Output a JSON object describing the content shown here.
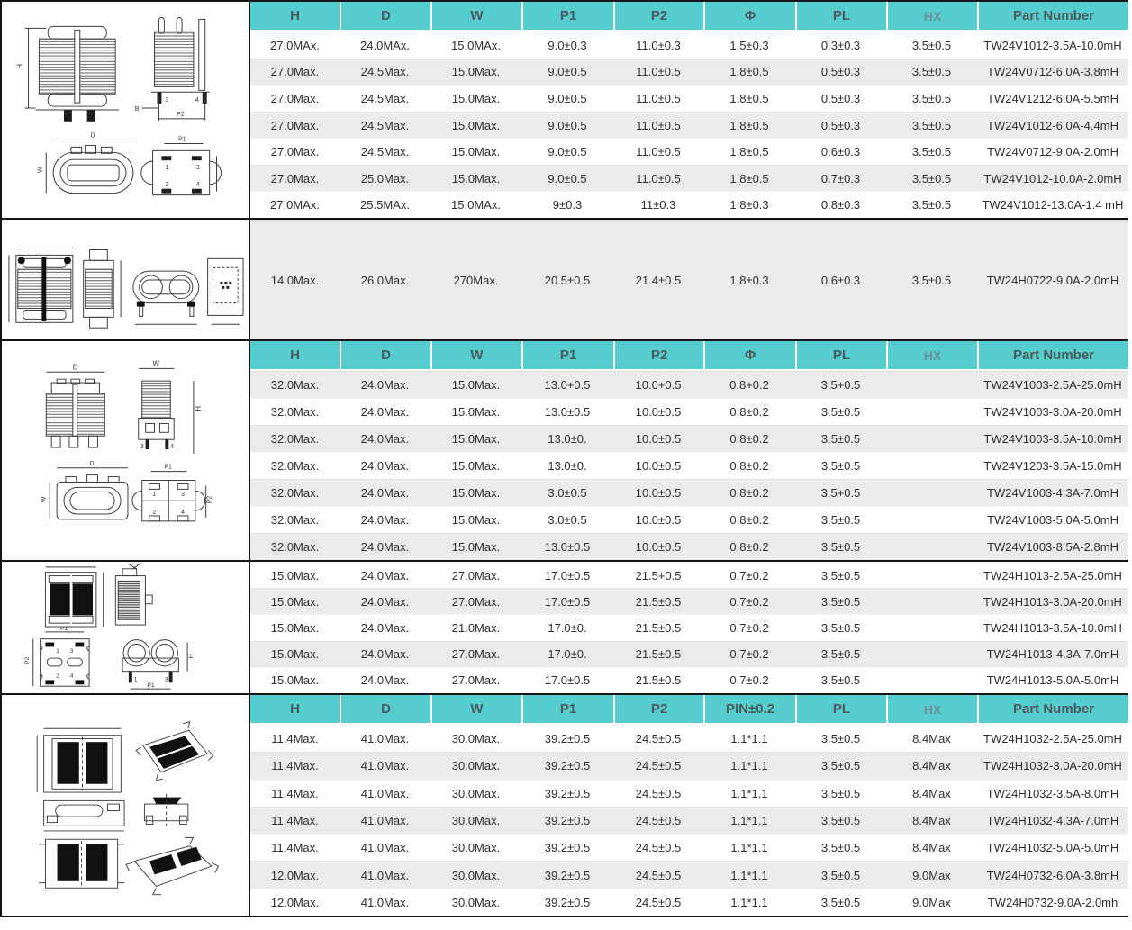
{
  "colors": {
    "header_bg": "#55cdce",
    "section_border": "#141414",
    "row_alt": "#ebebeb",
    "row_white": "#ffffff",
    "header_text": "#4b5a5d",
    "hx_header_text": "#6d9094",
    "cell_text": "#2e2e2e"
  },
  "table": {
    "sections": [
      {
        "header": [
          "H",
          "D",
          "W",
          "P1",
          "P2",
          "Φ",
          "PL",
          "HX",
          "Part Number"
        ],
        "stripe_start": "white",
        "rows": [
          [
            "27.0MAx.",
            "24.0MAx.",
            "15.0MAx.",
            "9.0±0.3",
            "11.0±0.3",
            "1.5±0.3",
            "0.3±0.3",
            "3.5±0.5",
            "TW24V1012-3.5A-10.0mH"
          ],
          [
            "27.0Max.",
            "24.5Max.",
            "15.0Max.",
            "9.0±0.5",
            "11.0±0.5",
            "1.8±0.5",
            "0.5±0.3",
            "3.5±0.5",
            "TW24V0712-6.0A-3.8mH"
          ],
          [
            "27.0Max.",
            "24.5Max.",
            "15.0Max.",
            "9.0±0.5",
            "11.0±0.5",
            "1.8±0.5",
            "0.5±0.3",
            "3.5±0.5",
            "TW24V1212-6.0A-5.5mH"
          ],
          [
            "27.0Max.",
            "24.5Max.",
            "15.0Max.",
            "9.0±0.5",
            "11.0±0.5",
            "1.8±0.5",
            "0.5±0.3",
            "3.5±0.5",
            "TW24V1012-6.0A-4.4mH"
          ],
          [
            "27.0Max.",
            "24.5Max.",
            "15.0Max.",
            "9.0±0.5",
            "11.0±0.5",
            "1.8±0.5",
            "0.6±0.3",
            "3.5±0.5",
            "TW24V0712-9.0A-2.0mH"
          ],
          [
            "27.0Max.",
            "25.0Max.",
            "15.0Max.",
            "9.0±0.5",
            "11.0±0.5",
            "1.8±0.5",
            "0.7±0.3",
            "3.5±0.5",
            "TW24V1012-10.0A-2.0mH"
          ],
          [
            "27.0MAx.",
            "25.5MAx.",
            "15.0MAx.",
            "9±0.3",
            "11±0.3",
            "1.8±0.3",
            "0.8±0.3",
            "3.5±0.5",
            "TW24V1012-13.0A-1.4 mH"
          ]
        ]
      },
      {
        "tall": true,
        "stripe_start": "alt",
        "rows": [
          [
            "14.0Max.",
            "26.0Max.",
            "270Max.",
            "20.5±0.5",
            "21.4±0.5",
            "1.8±0.3",
            "0.6±0.3",
            "3.5±0.5",
            "TW24H0722-9.0A-2.0mH"
          ]
        ]
      },
      {
        "header": [
          "H",
          "D",
          "W",
          "P1",
          "P2",
          "Φ",
          "PL",
          "HX",
          "Part Number"
        ],
        "stripe_start": "alt",
        "rows": [
          [
            "32.0Max.",
            "24.0Max.",
            "15.0Max.",
            "13.0+0.5",
            "10.0+0.5",
            "0.8+0.2",
            "3.5+0.5",
            "",
            "TW24V1003-2.5A-25.0mH"
          ],
          [
            "32.0Max.",
            "24.0Max.",
            "15.0Max.",
            "13.0±0.5",
            "10.0±0.5",
            "0.8±0.2",
            "3.5±0.5",
            "",
            "TW24V1003-3.0A-20.0mH"
          ],
          [
            "32.0Max.",
            "24.0Max.",
            "15.0Max.",
            "13.0±0.",
            "10.0±0.5",
            "0.8±0.2",
            "3.5±0.5",
            "",
            "TW24V1003-3.5A-10.0mH"
          ],
          [
            "32.0Max.",
            "24.0Max.",
            "15.0Max.",
            "13.0±0.",
            "10.0±0.5",
            "0.8±0.2",
            "3.5±0.5",
            "",
            "TW24V1203-3.5A-15.0mH"
          ],
          [
            "32.0Max.",
            "24.0Max.",
            "15.0Max.",
            "3.0±0.5",
            "10.0±0.5",
            "0.8±0.2",
            "3.5+0.5",
            "",
            "TW24V1003-4.3A-7.0mH"
          ],
          [
            "32.0Max.",
            "24.0Max.",
            "15.0Max.",
            "3.0±0.5",
            "10.0±0.5",
            "0.8±0.2",
            "3.5±0.5",
            "",
            "TW24V1003-5.0A-5.0mH"
          ],
          [
            "32.0Max.",
            "24.0Max.",
            "15.0Max.",
            "13.0±0.5",
            "10.0±0.5",
            "0.8±0.2",
            "3.5±0.5",
            "",
            "TW24V1003-8.5A-2.8mH"
          ]
        ]
      },
      {
        "stripe_start": "white",
        "rows": [
          [
            "15.0Max.",
            "24.0Max.",
            "27.0Max.",
            "17.0±0.5",
            "21.5+0.5",
            "0.7±0.2",
            "3.5±0.5",
            "",
            "TW24H1013-2.5A-25.0mH"
          ],
          [
            "15.0Max.",
            "24.0Max.",
            "27.0Max.",
            "17.0±0.5",
            "21.5±0.5",
            "0.7±0.2",
            "3.5±0.5",
            "",
            "TW24H1013-3.0A-20.0mH"
          ],
          [
            "15.0Max.",
            "24.0Max.",
            "21.0Max.",
            "17.0±0.",
            "21.5±0.5",
            "0.7±0.2",
            "3.5±0.5",
            "",
            "TW24H1013-3.5A-10.0mH"
          ],
          [
            "15.0Max.",
            "24.0Max.",
            "27.0Max.",
            "17.0±0.",
            "21.5±0.5",
            "0.7±0.2",
            "3.5±0.5",
            "",
            "TW24H1013-4.3A-7.0mH"
          ],
          [
            "15.0Max.",
            "24.0Max.",
            "27.0Max.",
            "17.0±0.5",
            "21.5±0.5",
            "0.7±0.2",
            "3.5±0.5",
            "",
            "TW24H1013-5.0A-5.0mH"
          ]
        ]
      },
      {
        "header": [
          "H",
          "D",
          "W",
          "P1",
          "P2",
          "PIN±0.2",
          "PL",
          "HX",
          "Part Number"
        ],
        "stripe_start": "white",
        "rows": [
          [
            "11.4Max.",
            "41.0Max.",
            "30.0Max.",
            "39.2±0.5",
            "24.5±0.5",
            "1.1*1.1",
            "3.5±0.5",
            "8.4Max",
            "TW24H1032-2.5A-25.0mH"
          ],
          [
            "11.4Max.",
            "41.0Max.",
            "30.0Max.",
            "39.2±0.5",
            "24.5±0.5",
            "1.1*1.1",
            "3.5±0.5",
            "8.4Max",
            "TW24H1032-3.0A-20.0mH"
          ],
          [
            "11.4Max.",
            "41.0Max.",
            "30.0Max.",
            "39.2±0.5",
            "24.5±0.5",
            "1.1*1.1",
            "3.5±0.5",
            "8.4Max",
            "TW24H1032-3.5A-8.0mH"
          ],
          [
            "11.4Max.",
            "41.0Max.",
            "30.0Max.",
            "39.2±0.5",
            "24.5±0.5",
            "1.1*1.1",
            "3.5±0.5",
            "8.4Max",
            "TW24H1032-4.3A-7.0mH"
          ],
          [
            "11.4Max.",
            "41.0Max.",
            "30.0Max.",
            "39.2±0.5",
            "24.5±0.5",
            "1.1*1.1",
            "3.5±0.5",
            "8.4Max",
            "TW24H1032-5.0A-5.0mH"
          ],
          [
            "12.0Max.",
            "41.0Max.",
            "30.0Max.",
            "39.2±0.5",
            "24.5±0.5",
            "1.1*1.1",
            "3.5±0.5",
            "9.0Max",
            "TW24H0732-6.0A-3.8mH"
          ],
          [
            "12.0Max.",
            "41.0Max.",
            "30.0Max.",
            "39.2±0.5",
            "24.5±0.5",
            "1.1*1.1",
            "3.5±0.5",
            "9.0Max",
            "TW24H0732-9.0A-2.0mh"
          ]
        ]
      }
    ]
  },
  "drawings": {
    "p1": {
      "h": "H",
      "pin3": "3",
      "pin4": "4",
      "b": "B",
      "p2": "P2",
      "d": "D",
      "w": "W",
      "p1": "P1",
      "b1": "1",
      "b3": "3",
      "b2": "2",
      "b4": "4"
    },
    "p3": {
      "d": "D",
      "w": "W",
      "h": "H",
      "pin3": "3",
      "pin4": "4",
      "d2": "D",
      "w2": "W",
      "p1": "P1",
      "p2": "P2",
      "b1": "1",
      "b3": "3",
      "b2": "2",
      "b4": "4"
    },
    "p4": {
      "p1": "P1",
      "p2": "P2",
      "b1": "1",
      "b3": "3",
      "b2": "2",
      "b4": "4",
      "rp1": "P1",
      "rh": "H",
      "r1": "1",
      "r3": "3"
    }
  }
}
